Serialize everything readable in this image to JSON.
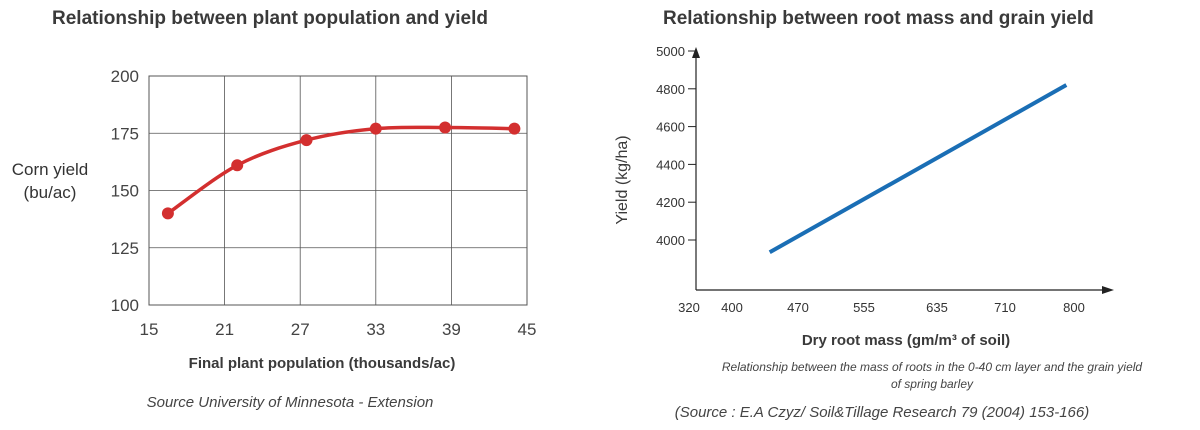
{
  "chart_data": [
    {
      "type": "line",
      "title": "Relationship between plant population and yield",
      "xlabel": "Final plant population (thousands/ac)",
      "ylabel_line1": "Corn yield",
      "ylabel_line2": "(bu/ac)",
      "xlim": [
        15,
        45
      ],
      "ylim": [
        100,
        200
      ],
      "x_ticks": [
        15,
        21,
        27,
        33,
        39,
        45
      ],
      "y_ticks": [
        100,
        125,
        150,
        175,
        200
      ],
      "grid": true,
      "line_color": "#d32f2f",
      "series": [
        {
          "x": [
            16.5,
            22,
            27.5,
            33,
            38.5,
            44
          ],
          "y": [
            140,
            161,
            172,
            177,
            177.5,
            177
          ]
        }
      ],
      "source": "Source University of Minnesota - Extension"
    },
    {
      "type": "line",
      "title": "Relationship between root mass and grain yield",
      "xlabel": "Dry root mass (gm/m³ of soil)",
      "ylabel": "Yield (kg/ha)",
      "x_ticks": [
        320,
        400,
        470,
        555,
        635,
        710,
        800
      ],
      "y_ticks": [
        4000,
        4200,
        4400,
        4600,
        4800,
        5000
      ],
      "grid": false,
      "line_color": "#1a6eb5",
      "series": [
        {
          "x": [
            440,
            790
          ],
          "y": [
            3935,
            4820
          ]
        }
      ],
      "caption_line1": "Relationship between the mass of roots in the 0-40 cm layer and the grain yield",
      "caption_line2": "of spring barley",
      "source": "(Source : E.A Czyz/ Soil&Tillage Research 79 (2004) 153-166)"
    }
  ]
}
